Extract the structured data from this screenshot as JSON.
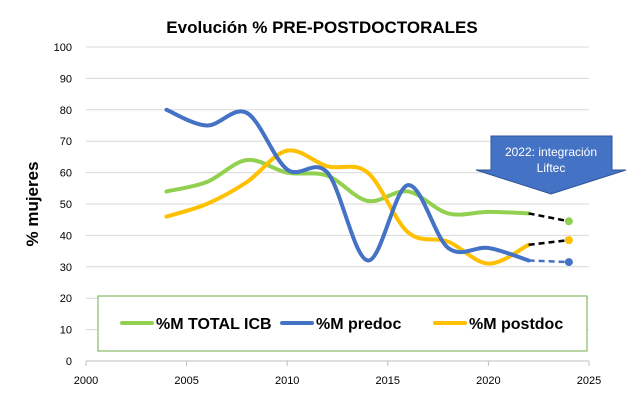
{
  "chart_data": {
    "type": "line",
    "title": "Evolución % PRE-POSTDOCTORALES",
    "xlabel": "",
    "ylabel": "% mujeres",
    "xlim": [
      2000,
      2025
    ],
    "ylim": [
      0,
      100
    ],
    "x_ticks": [
      "2000",
      "2005",
      "2010",
      "2015",
      "2020",
      "2025"
    ],
    "y_ticks": [
      "0",
      "10",
      "20",
      "30",
      "40",
      "50",
      "60",
      "70",
      "80",
      "90",
      "100"
    ],
    "grid": true,
    "legend_position": "bottom",
    "series": [
      {
        "name": "%M TOTAL ICB",
        "color": "#92d050",
        "x": [
          2004,
          2006,
          2008,
          2010,
          2012,
          2014,
          2016,
          2018,
          2020,
          2022
        ],
        "values": [
          54,
          57,
          64,
          60,
          59,
          51,
          54,
          47,
          47.5,
          47
        ],
        "projection": {
          "x": [
            2022,
            2024
          ],
          "values": [
            47,
            44.5
          ]
        }
      },
      {
        "name": "%M predoc",
        "color": "#4472c4",
        "x": [
          2004,
          2006,
          2008,
          2010,
          2012,
          2014,
          2016,
          2018,
          2020,
          2022
        ],
        "values": [
          80,
          75,
          79,
          61,
          60,
          32,
          56,
          36,
          36,
          32
        ],
        "projection": {
          "x": [
            2022,
            2024
          ],
          "values": [
            32,
            31.5
          ]
        }
      },
      {
        "name": "%M postdoc",
        "color": "#ffc000",
        "x": [
          2004,
          2006,
          2008,
          2010,
          2012,
          2014,
          2016,
          2018,
          2020,
          2022
        ],
        "values": [
          46,
          50,
          57,
          67,
          62,
          60,
          41,
          38,
          31,
          37
        ],
        "projection": {
          "x": [
            2022,
            2024
          ],
          "values": [
            37,
            38.5
          ]
        }
      }
    ],
    "annotation": {
      "text": "2022: integración Liftec",
      "color": "#4472c4"
    }
  }
}
